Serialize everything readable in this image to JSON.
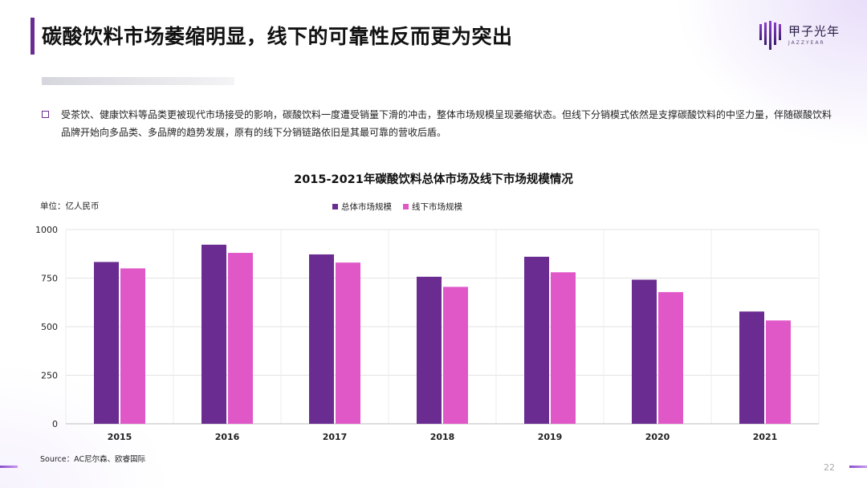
{
  "header": {
    "title": "碳酸饮料市场萎缩明显，线下的可靠性反而更为突出",
    "logo_name": "甲子光年",
    "logo_sub": "JAZZYEAR"
  },
  "body": {
    "text": "受茶饮、健康饮料等品类更被现代市场接受的影响，碳酸饮料一度遭受销量下滑的冲击，整体市场规模呈现萎缩状态。但线下分销模式依然是支撑碳酸饮料的中坚力量，伴随碳酸饮料品牌开始向多品类、多品牌的趋势发展，原有的线下分销链路依旧是其最可靠的营收后盾。"
  },
  "chart_data": {
    "type": "bar",
    "title": "2015-2021年碳酸饮料总体市场及线下市场规模情况",
    "unit_label": "单位：亿人民币",
    "categories": [
      "2015",
      "2016",
      "2017",
      "2018",
      "2019",
      "2020",
      "2021"
    ],
    "series": [
      {
        "name": "总体市场规模",
        "color": "#6a2c91",
        "values": [
          833,
          922,
          872,
          757,
          860,
          742,
          578
        ]
      },
      {
        "name": "线下市场规模",
        "color": "#e058c8",
        "values": [
          800,
          880,
          830,
          705,
          780,
          678,
          532
        ]
      }
    ],
    "ylim": [
      0,
      1000
    ],
    "yticks": [
      0,
      250,
      500,
      750,
      1000
    ],
    "grid": true,
    "legend_position": "top-center"
  },
  "footer": {
    "source": "Source：AC尼尔森、欧睿国际",
    "page_number": "22"
  },
  "colors": {
    "accent": "#6a2c91",
    "secondary": "#e058c8",
    "footer_line": "#8a4fc8"
  }
}
